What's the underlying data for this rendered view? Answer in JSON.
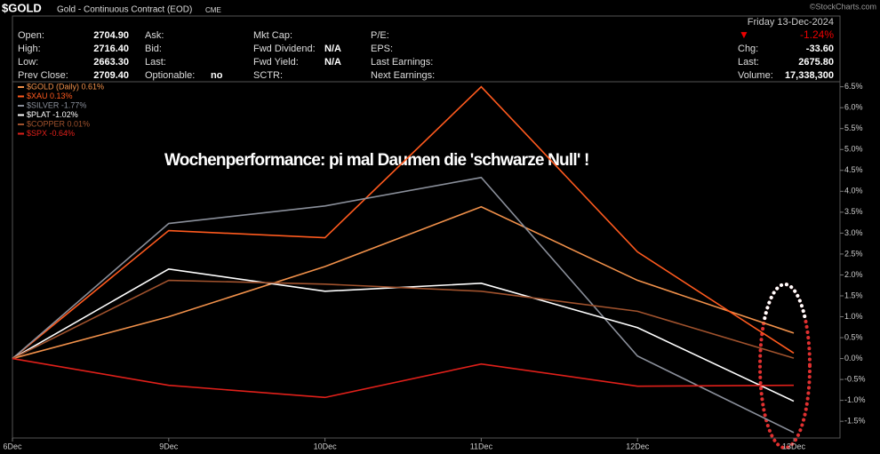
{
  "header": {
    "symbol": "$GOLD",
    "description": "Gold - Continuous Contract (EOD)",
    "exchange": "CME",
    "copyright": "©StockCharts.com",
    "date": "Friday  13-Dec-2024",
    "change_arrow": "▼",
    "change_pct": "-1.24%",
    "columns": [
      [
        {
          "label": "Open:",
          "value": "2704.90"
        },
        {
          "label": "High:",
          "value": "2716.40"
        },
        {
          "label": "Low:",
          "value": "2663.30"
        },
        {
          "label": "Prev Close:",
          "value": "2709.40"
        }
      ],
      [
        {
          "label": "Ask:"
        },
        {
          "label": "Bid:"
        },
        {
          "label": "Last:"
        },
        {
          "label": "Optionable:",
          "value": "no"
        }
      ],
      [
        {
          "label": "Mkt Cap:"
        },
        {
          "label": "Fwd Dividend:",
          "value": "N/A"
        },
        {
          "label": "Fwd Yield:",
          "value": "N/A"
        },
        {
          "label": "SCTR:"
        }
      ],
      [
        {
          "label": "P/E:"
        },
        {
          "label": "EPS:"
        },
        {
          "label": "Last Earnings:"
        },
        {
          "label": "Next Earnings:"
        }
      ]
    ],
    "right": [
      {
        "label": "Chg:",
        "value": "-33.60"
      },
      {
        "label": "Last:",
        "value": "2675.80"
      },
      {
        "label": "Volume:",
        "value": "17,338,300"
      }
    ]
  },
  "chart_data": {
    "type": "line",
    "annotation": "Wochenperformance: pi mal Daumen die 'schwarze Null' !",
    "categories": [
      "6Dec",
      "9Dec",
      "10Dec",
      "11Dec",
      "12Dec",
      "13Dec"
    ],
    "series": [
      {
        "name": "$GOLD (Daily) 0.61%",
        "color": "#f0904a",
        "values": [
          0,
          1.0,
          2.2,
          3.63,
          1.87,
          0.61
        ]
      },
      {
        "name": "$XAU 0.13%",
        "color": "#ff5a1e",
        "values": [
          0,
          3.06,
          2.89,
          6.5,
          2.55,
          0.13
        ]
      },
      {
        "name": "$SILVER -1.77%",
        "color": "#8a8f9a",
        "values": [
          0,
          3.23,
          3.65,
          4.33,
          0.06,
          -1.77
        ]
      },
      {
        "name": "$PLAT -1.02%",
        "color": "#ffffff",
        "values": [
          0,
          2.14,
          1.61,
          1.8,
          0.74,
          -1.02
        ]
      },
      {
        "name": "$COPPER 0.01%",
        "color": "#a0522d",
        "values": [
          0,
          1.87,
          1.78,
          1.61,
          1.13,
          0.01
        ]
      },
      {
        "name": "$SPX -0.64%",
        "color": "#e0201a",
        "values": [
          0,
          -0.64,
          -0.93,
          -0.13,
          -0.66,
          -0.64
        ]
      }
    ],
    "ylim": [
      -1.9,
      6.62
    ],
    "yticks": [
      {
        "value": -1.5,
        "label": "-1.5%"
      },
      {
        "value": -1,
        "label": "-1.0%"
      },
      {
        "value": -0.5,
        "label": "-0.5%"
      },
      {
        "value": 0,
        "label": "0.0%"
      },
      {
        "value": 0.5,
        "label": "0.5%"
      },
      {
        "value": 1,
        "label": "1.0%"
      },
      {
        "value": 1.5,
        "label": "1.5%"
      },
      {
        "value": 2,
        "label": "2.0%"
      },
      {
        "value": 2.5,
        "label": "2.5%"
      },
      {
        "value": 3,
        "label": "3.0%"
      },
      {
        "value": 3.5,
        "label": "3.5%"
      },
      {
        "value": 4,
        "label": "4.0%"
      },
      {
        "value": 4.5,
        "label": "4.5%"
      },
      {
        "value": 5,
        "label": "5.0%"
      },
      {
        "value": 5.5,
        "label": "5.5%"
      },
      {
        "value": 6,
        "label": "6.0%"
      },
      {
        "value": 6.5,
        "label": "6.5%"
      }
    ],
    "grid": false
  }
}
